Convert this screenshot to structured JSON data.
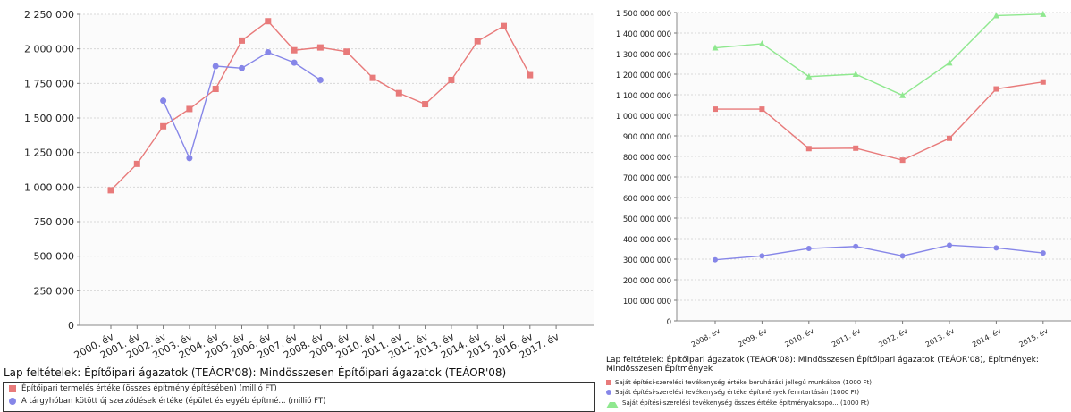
{
  "chart_data": [
    {
      "type": "line",
      "categories": [
        "2000. év",
        "2001. év",
        "2002. év",
        "2003. év",
        "2004. év",
        "2005. év",
        "2006. év",
        "2007. év",
        "2008. év",
        "2009. év",
        "2010. év",
        "2011. év",
        "2012. év",
        "2013. év",
        "2014. év",
        "2015. év",
        "2016. év",
        "2017. év"
      ],
      "ylim": [
        0,
        2250000
      ],
      "yticks": [
        0,
        250000,
        500000,
        750000,
        1000000,
        1250000,
        1500000,
        1750000,
        2000000,
        2250000
      ],
      "ytick_labels": [
        "0",
        "250 000",
        "500 000",
        "750 000",
        "1 000 000",
        "1 250 000",
        "1 500 000",
        "1 750 000",
        "2 000 000",
        "2 250 000"
      ],
      "grid": true,
      "conditions": "Lap feltételek: Építőipari ágazatok (TEÁOR'08): Mindösszesen Építőipari ágazatok (TEÁOR'08)",
      "series": [
        {
          "name": "Építőipari termelés értéke (összes építmény építésében) (millió FT)",
          "color": "#e87a7a",
          "marker": "square",
          "values": [
            977000,
            1168000,
            1440000,
            1565000,
            1710000,
            2060000,
            2200000,
            1990000,
            2010000,
            1980000,
            1790000,
            1680000,
            1600000,
            1775000,
            2055000,
            2165000,
            1810000,
            null
          ]
        },
        {
          "name": "A tárgyhóban kötött új szerződések értéke (épület és egyéb építmé... (millió FT)",
          "color": "#8686e8",
          "marker": "circle",
          "values": [
            null,
            null,
            1625000,
            1210000,
            1875000,
            1860000,
            1975000,
            1900000,
            1775000,
            null,
            null,
            null,
            null,
            null,
            null,
            null,
            null,
            null
          ]
        }
      ]
    },
    {
      "type": "line",
      "categories": [
        "2008. év",
        "2009. év",
        "2010. év",
        "2011. év",
        "2012. év",
        "2013. év",
        "2014. év",
        "2015. év"
      ],
      "ylim": [
        0,
        1500000000
      ],
      "yticks": [
        0,
        100000000,
        200000000,
        300000000,
        400000000,
        500000000,
        600000000,
        700000000,
        800000000,
        900000000,
        1000000000,
        1100000000,
        1200000000,
        1300000000,
        1400000000,
        1500000000
      ],
      "ytick_labels": [
        "0",
        "100 000 000",
        "200 000 000",
        "300 000 000",
        "400 000 000",
        "500 000 000",
        "600 000 000",
        "700 000 000",
        "800 000 000",
        "900 000 000",
        "1 000 000 000",
        "1 100 000 000",
        "1 200 000 000",
        "1 300 000 000",
        "1 400 000 000",
        "1 500 000 000"
      ],
      "grid": true,
      "conditions": "Lap feltételek: Építőipari ágazatok (TEÁOR'08): Mindösszesen Építőipari ágazatok (TEÁOR'08), Építmények: Mindösszesen Építmények",
      "series": [
        {
          "name": "Saját építési-szerelési tevékenység értéke beruházási jellegű munkákon (1000 Ft)",
          "color": "#e87a7a",
          "marker": "square",
          "values": [
            1030000000,
            1030000000,
            838000000,
            840000000,
            782000000,
            888000000,
            1128000000,
            1162000000
          ]
        },
        {
          "name": "Saját építési-szerelési tevékenység értéke építmények fenntartásán (1000 Ft)",
          "color": "#8686e8",
          "marker": "circle",
          "values": [
            297000000,
            316000000,
            352000000,
            362000000,
            316000000,
            368000000,
            355000000,
            330000000
          ]
        },
        {
          "name": "Saját építési-szerelési tevékenység összes értéke építményalcsopo... (1000 Ft)",
          "color": "#8fe88f",
          "marker": "triangle",
          "values": [
            1328000000,
            1348000000,
            1188000000,
            1200000000,
            1097000000,
            1255000000,
            1485000000,
            1492000000
          ]
        }
      ]
    }
  ]
}
